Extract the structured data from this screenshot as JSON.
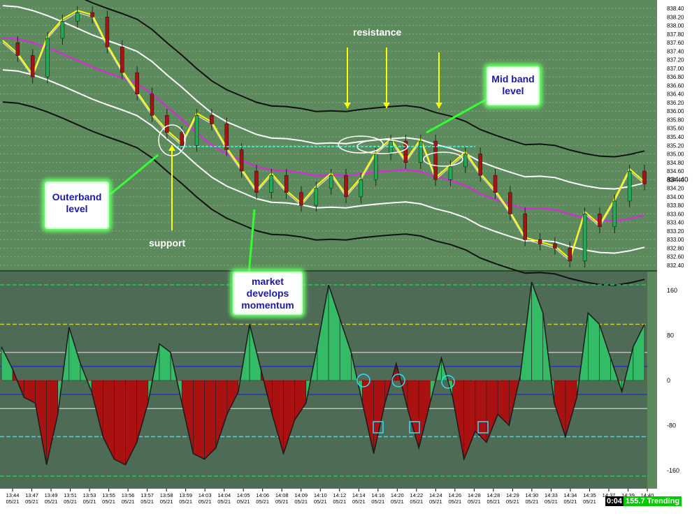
{
  "annotations": {
    "resistance": "resistance",
    "support": "support",
    "outerband": "Outerband level",
    "midband": "Mid band level",
    "momentum": "market develops momentum"
  },
  "status": {
    "time": "0:04",
    "value": "155.7",
    "state": "Trending"
  },
  "colors": {
    "bg_price": "#5c8a5c",
    "bg_osc": "#4d6b55",
    "up": "#22aa55",
    "down": "#aa1111",
    "magenta": "#cc33cc",
    "yellow": "#ffff00",
    "cyan": "#33ffee"
  },
  "chart_data": [
    {
      "type": "candlestick",
      "title": "",
      "ylabels": [
        "838.40",
        "838.20",
        "838.00",
        "837.80",
        "837.60",
        "837.40",
        "837.20",
        "837.00",
        "836.80",
        "836.60",
        "836.40",
        "836.20",
        "836.00",
        "835.80",
        "835.60",
        "835.40",
        "835.20",
        "835.00",
        "834.80",
        "834.60",
        "834.40",
        "834.20",
        "834.00",
        "833.80",
        "833.60",
        "833.40",
        "833.20",
        "833.00",
        "832.80",
        "832.60",
        "832.40"
      ],
      "ylim": [
        832.4,
        838.4
      ],
      "last_price": "834.40",
      "close_series": [
        837.6,
        837.3,
        836.8,
        837.7,
        838.1,
        838.3,
        838.2,
        837.5,
        836.9,
        836.4,
        835.9,
        835.5,
        835.2,
        835.9,
        835.7,
        835.1,
        834.6,
        834.1,
        834.5,
        834.1,
        833.8,
        834.2,
        834.5,
        834.0,
        834.4,
        835.0,
        835.3,
        834.8,
        835.3,
        834.4,
        834.7,
        835.0,
        834.5,
        834.1,
        833.6,
        833.0,
        832.9,
        832.8,
        832.5,
        833.6,
        833.3,
        833.9,
        834.6,
        834.3
      ]
    },
    {
      "type": "histogram",
      "title": "",
      "ylabels": [
        "160",
        "80",
        "0",
        "-80",
        "-160"
      ],
      "ylim": [
        -180,
        180
      ],
      "values": [
        60,
        20,
        -30,
        -40,
        -150,
        -60,
        95,
        30,
        -20,
        -100,
        -140,
        -150,
        -110,
        -40,
        65,
        50,
        -40,
        -130,
        -140,
        -120,
        -60,
        -20,
        100,
        20,
        -60,
        -130,
        -70,
        -40,
        60,
        170,
        110,
        50,
        -40,
        -130,
        -40,
        30,
        -50,
        -120,
        -40,
        40,
        -30,
        -140,
        -90,
        -110,
        -60,
        -80,
        10,
        175,
        120,
        -40,
        -100,
        -30,
        120,
        100,
        40,
        -20,
        60,
        100
      ]
    }
  ],
  "xaxis": [
    {
      "t": "13:44",
      "d": "05/21"
    },
    {
      "t": "13:47",
      "d": "05/21"
    },
    {
      "t": "13:49",
      "d": "05/21"
    },
    {
      "t": "13:51",
      "d": "05/21"
    },
    {
      "t": "13:53",
      "d": "05/21"
    },
    {
      "t": "13:55",
      "d": "05/21"
    },
    {
      "t": "13:56",
      "d": "05/21"
    },
    {
      "t": "13:57",
      "d": "05/21"
    },
    {
      "t": "13:58",
      "d": "05/21"
    },
    {
      "t": "13:59",
      "d": "05/21"
    },
    {
      "t": "14:03",
      "d": "05/21"
    },
    {
      "t": "14:04",
      "d": "05/21"
    },
    {
      "t": "14:05",
      "d": "05/21"
    },
    {
      "t": "14:06",
      "d": "05/21"
    },
    {
      "t": "14:08",
      "d": "05/21"
    },
    {
      "t": "14:09",
      "d": "05/21"
    },
    {
      "t": "14:10",
      "d": "05/21"
    },
    {
      "t": "14:12",
      "d": "05/21"
    },
    {
      "t": "14:14",
      "d": "05/21"
    },
    {
      "t": "14:16",
      "d": "05/21"
    },
    {
      "t": "14:20",
      "d": "05/21"
    },
    {
      "t": "14:22",
      "d": "05/21"
    },
    {
      "t": "14:24",
      "d": "05/21"
    },
    {
      "t": "14:26",
      "d": "05/21"
    },
    {
      "t": "14:28",
      "d": "05/21"
    },
    {
      "t": "14:28",
      "d": "05/21"
    },
    {
      "t": "14:29",
      "d": "05/21"
    },
    {
      "t": "14:30",
      "d": "05/21"
    },
    {
      "t": "14:33",
      "d": "05/21"
    },
    {
      "t": "14:34",
      "d": "05/21"
    },
    {
      "t": "14:35",
      "d": "05/21"
    },
    {
      "t": "14:37",
      "d": "05"
    },
    {
      "t": "14:39",
      "d": "05/21"
    },
    {
      "t": "14:40",
      "d": ""
    }
  ]
}
